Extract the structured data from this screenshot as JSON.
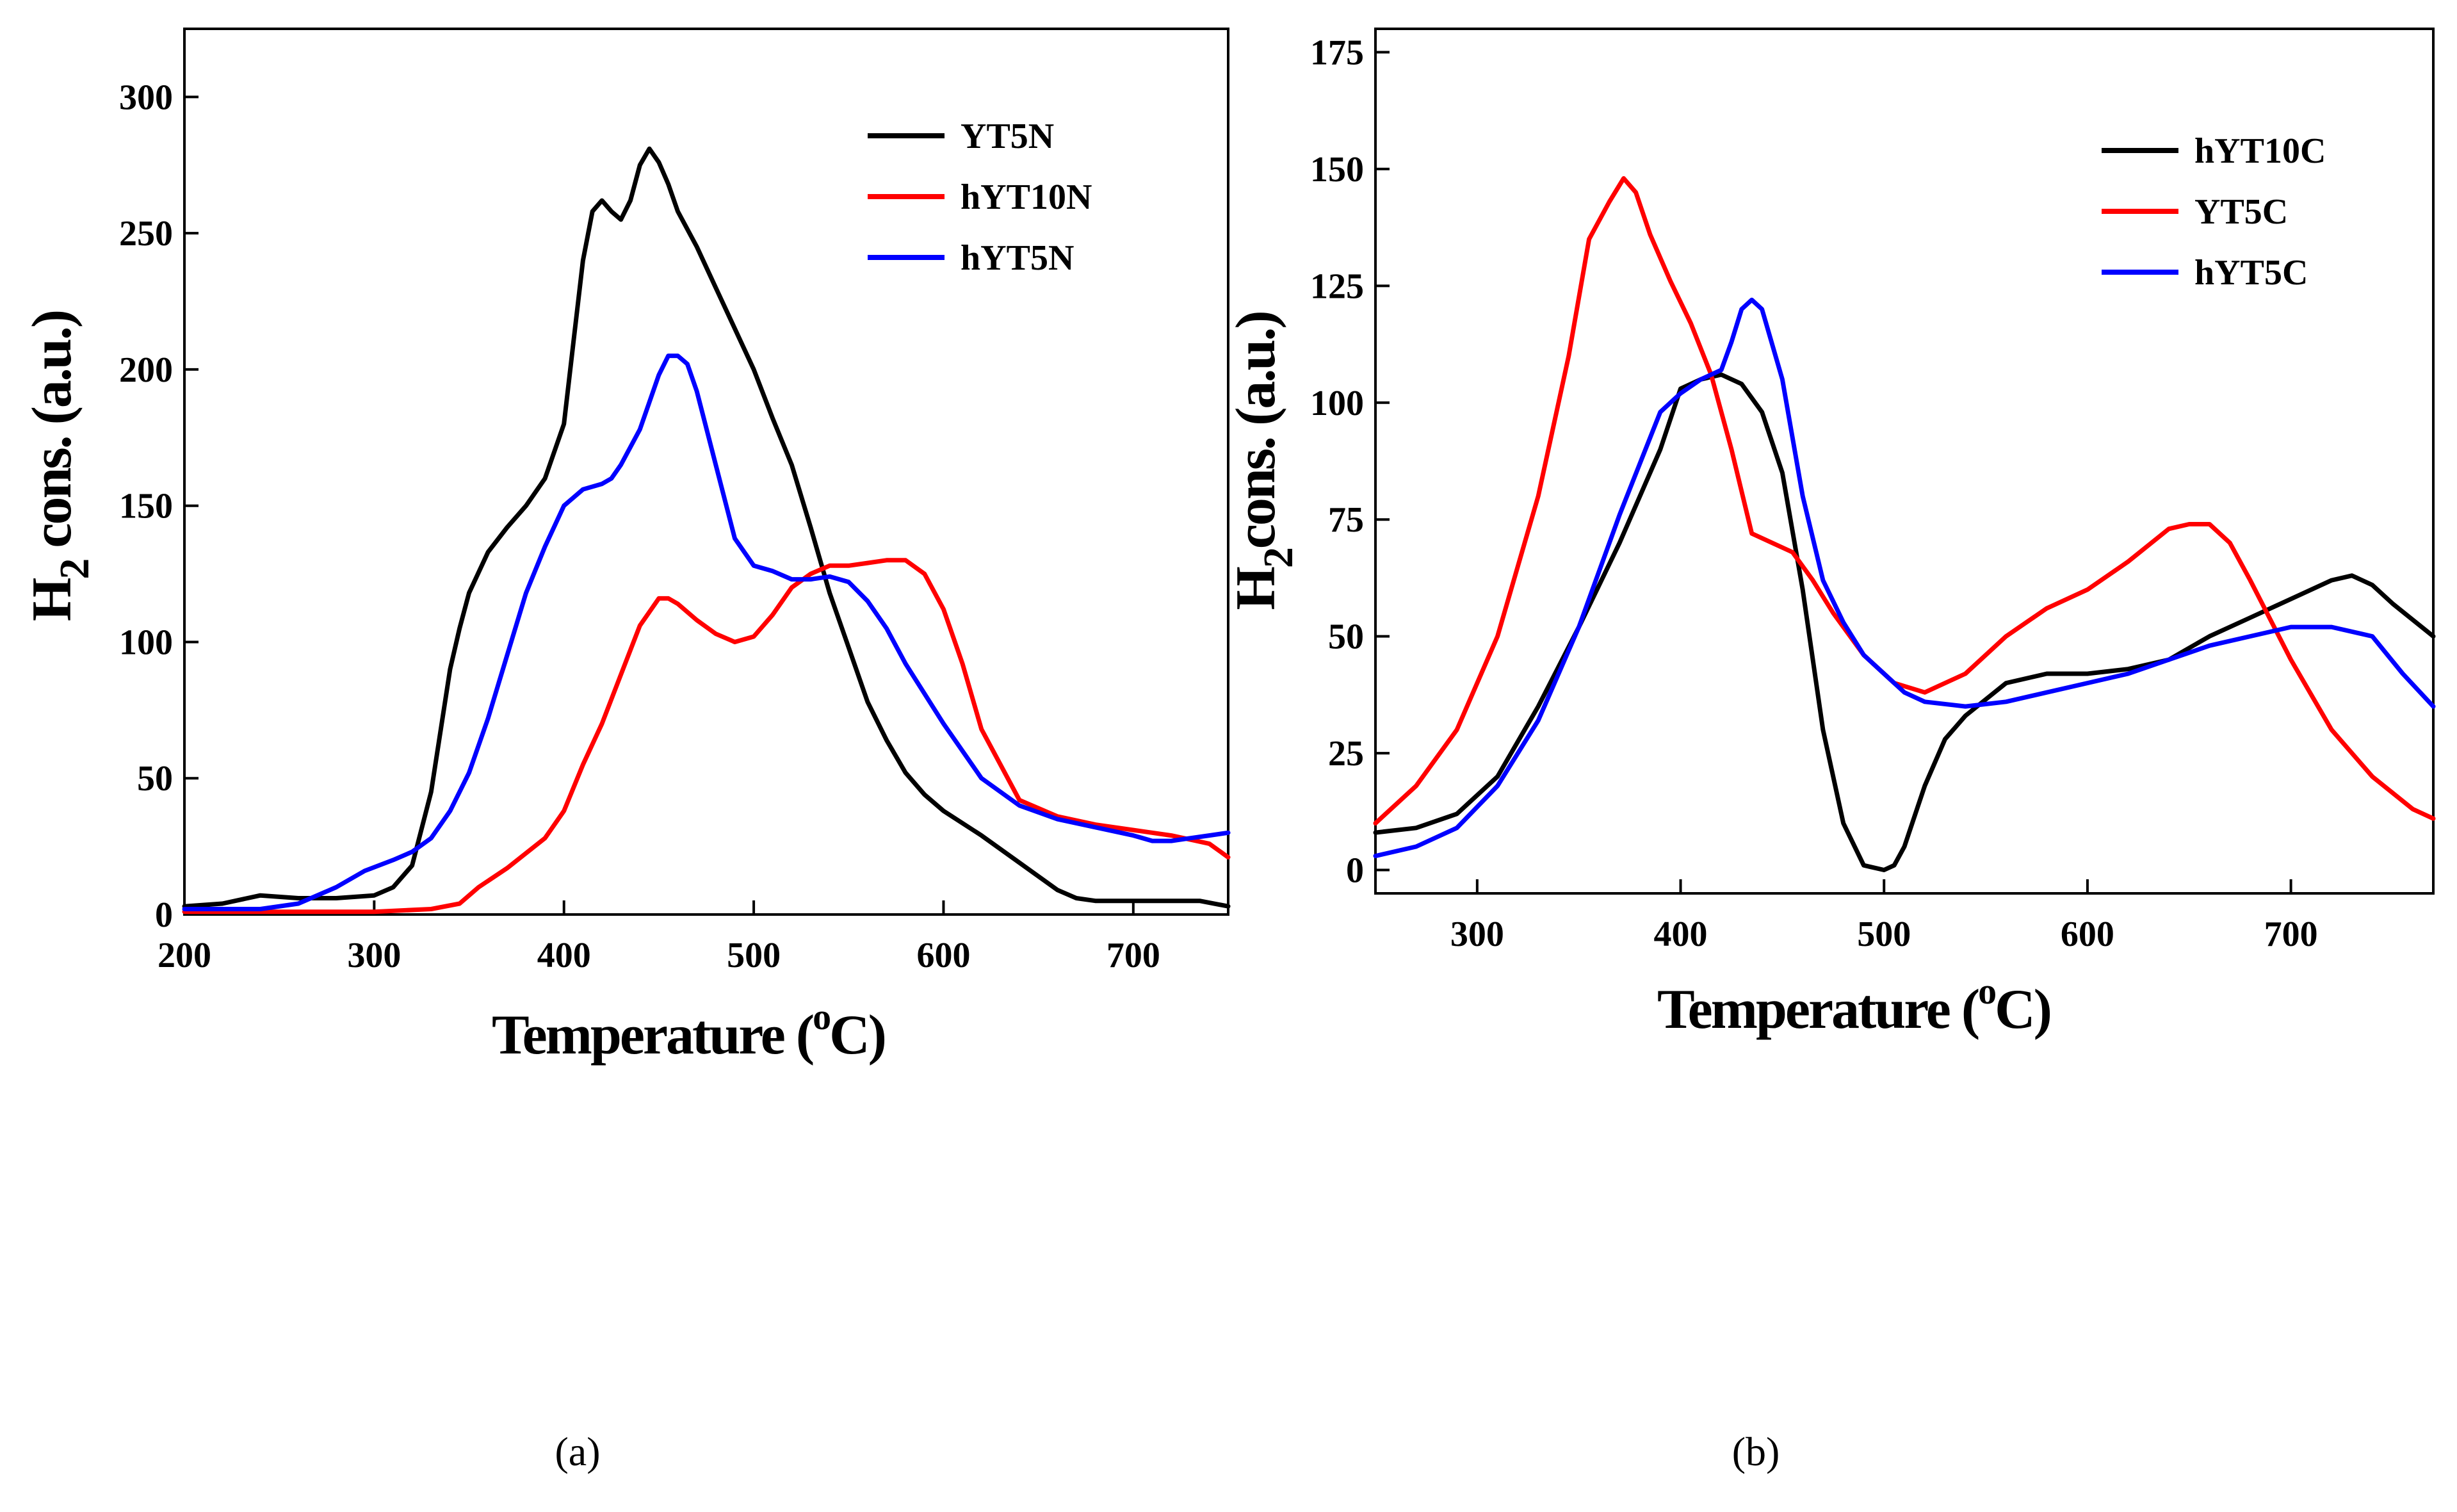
{
  "chart_data": [
    {
      "id": "a",
      "type": "line",
      "caption": "(a)",
      "xlabel": {
        "main": "Temperature (",
        "sup": "o",
        "tail": "C)"
      },
      "ylabel": {
        "main": "H",
        "sub": "2",
        "tail": " cons. (a.u.)"
      },
      "xlim": [
        200,
        750
      ],
      "ylim": [
        0,
        325
      ],
      "xticks": [
        200,
        300,
        400,
        500,
        600,
        700
      ],
      "yticks": [
        0,
        50,
        100,
        150,
        200,
        250,
        300
      ],
      "legend_position": "top-right",
      "series": [
        {
          "name": "YT5N",
          "color": "#000000",
          "x": [
            200,
            220,
            240,
            260,
            280,
            300,
            310,
            320,
            330,
            340,
            345,
            350,
            360,
            370,
            380,
            390,
            400,
            405,
            410,
            415,
            420,
            425,
            430,
            435,
            440,
            445,
            450,
            455,
            460,
            470,
            480,
            490,
            500,
            510,
            520,
            530,
            540,
            550,
            560,
            570,
            580,
            590,
            600,
            620,
            640,
            660,
            670,
            680,
            700,
            720,
            735,
            750
          ],
          "y": [
            3,
            4,
            7,
            6,
            6,
            7,
            10,
            18,
            45,
            90,
            105,
            118,
            133,
            142,
            150,
            160,
            180,
            210,
            240,
            258,
            262,
            258,
            255,
            262,
            275,
            281,
            276,
            268,
            258,
            245,
            230,
            215,
            200,
            182,
            165,
            142,
            118,
            98,
            78,
            64,
            52,
            44,
            38,
            29,
            19,
            9,
            6,
            5,
            5,
            5,
            5,
            3
          ]
        },
        {
          "name": "hYT10N",
          "color": "#ff0000",
          "x": [
            200,
            250,
            300,
            330,
            345,
            355,
            370,
            390,
            400,
            410,
            420,
            430,
            440,
            450,
            455,
            460,
            470,
            480,
            490,
            500,
            510,
            520,
            530,
            540,
            550,
            560,
            570,
            580,
            590,
            600,
            610,
            620,
            640,
            660,
            680,
            700,
            720,
            740,
            750
          ],
          "y": [
            1,
            1,
            1,
            2,
            4,
            10,
            17,
            28,
            38,
            55,
            70,
            88,
            106,
            116,
            116,
            114,
            108,
            103,
            100,
            102,
            110,
            120,
            125,
            128,
            128,
            129,
            130,
            130,
            125,
            112,
            92,
            68,
            42,
            36,
            33,
            31,
            29,
            26,
            21
          ]
        },
        {
          "name": "hYT5N",
          "color": "#0000ff",
          "x": [
            200,
            240,
            260,
            280,
            295,
            310,
            320,
            330,
            340,
            350,
            360,
            370,
            380,
            390,
            400,
            410,
            420,
            425,
            430,
            440,
            445,
            450,
            455,
            460,
            465,
            470,
            480,
            490,
            500,
            510,
            520,
            530,
            540,
            550,
            560,
            570,
            580,
            600,
            620,
            640,
            660,
            680,
            700,
            710,
            720,
            730,
            740,
            750
          ],
          "y": [
            2,
            2,
            4,
            10,
            16,
            20,
            23,
            28,
            38,
            52,
            72,
            95,
            118,
            135,
            150,
            156,
            158,
            160,
            165,
            178,
            188,
            198,
            205,
            205,
            202,
            192,
            165,
            138,
            128,
            126,
            123,
            123,
            124,
            122,
            115,
            105,
            92,
            70,
            50,
            40,
            35,
            32,
            29,
            27,
            27,
            28,
            29,
            30
          ]
        }
      ]
    },
    {
      "id": "b",
      "type": "line",
      "caption": "(b)",
      "xlabel": {
        "main": "Temperature (",
        "sup": "o",
        "tail": "C)"
      },
      "ylabel": {
        "main": "H",
        "sub": "2",
        "tail": "cons. (a.u.)"
      },
      "xlim": [
        250,
        770
      ],
      "ylim": [
        -5,
        180
      ],
      "xticks": [
        300,
        400,
        500,
        600,
        700
      ],
      "yticks": [
        0,
        25,
        50,
        75,
        100,
        125,
        150,
        175
      ],
      "legend_position": "top-right",
      "series": [
        {
          "name": "hYT10C",
          "color": "#000000",
          "x": [
            250,
            270,
            290,
            310,
            330,
            350,
            370,
            390,
            400,
            410,
            420,
            430,
            440,
            450,
            460,
            470,
            480,
            490,
            500,
            505,
            510,
            520,
            530,
            540,
            560,
            580,
            600,
            620,
            640,
            660,
            680,
            700,
            720,
            730,
            740,
            750,
            770
          ],
          "y": [
            8,
            9,
            12,
            20,
            35,
            52,
            70,
            90,
            103,
            105,
            106,
            104,
            98,
            85,
            60,
            30,
            10,
            1,
            0,
            1,
            5,
            18,
            28,
            33,
            40,
            42,
            42,
            43,
            45,
            50,
            54,
            58,
            62,
            63,
            61,
            57,
            50
          ]
        },
        {
          "name": "YT5C",
          "color": "#ff0000",
          "x": [
            250,
            270,
            290,
            310,
            330,
            345,
            355,
            365,
            372,
            378,
            385,
            395,
            405,
            415,
            425,
            435,
            445,
            455,
            465,
            475,
            490,
            505,
            520,
            540,
            560,
            580,
            600,
            620,
            640,
            650,
            660,
            670,
            680,
            700,
            720,
            740,
            760,
            770
          ],
          "y": [
            10,
            18,
            30,
            50,
            80,
            110,
            135,
            143,
            148,
            145,
            136,
            126,
            117,
            106,
            90,
            72,
            70,
            68,
            62,
            55,
            46,
            40,
            38,
            42,
            50,
            56,
            60,
            66,
            73,
            74,
            74,
            70,
            62,
            45,
            30,
            20,
            13,
            11
          ]
        },
        {
          "name": "hYT5C",
          "color": "#0000ff",
          "x": [
            250,
            270,
            290,
            310,
            330,
            350,
            370,
            390,
            400,
            410,
            420,
            425,
            430,
            435,
            440,
            450,
            460,
            470,
            480,
            490,
            500,
            510,
            520,
            540,
            560,
            580,
            600,
            620,
            640,
            660,
            680,
            700,
            720,
            740,
            755,
            770
          ],
          "y": [
            3,
            5,
            9,
            18,
            32,
            52,
            76,
            98,
            102,
            105,
            107,
            113,
            120,
            122,
            120,
            105,
            80,
            62,
            53,
            46,
            42,
            38,
            36,
            35,
            36,
            38,
            40,
            42,
            45,
            48,
            50,
            52,
            52,
            50,
            42,
            35
          ]
        }
      ]
    }
  ]
}
